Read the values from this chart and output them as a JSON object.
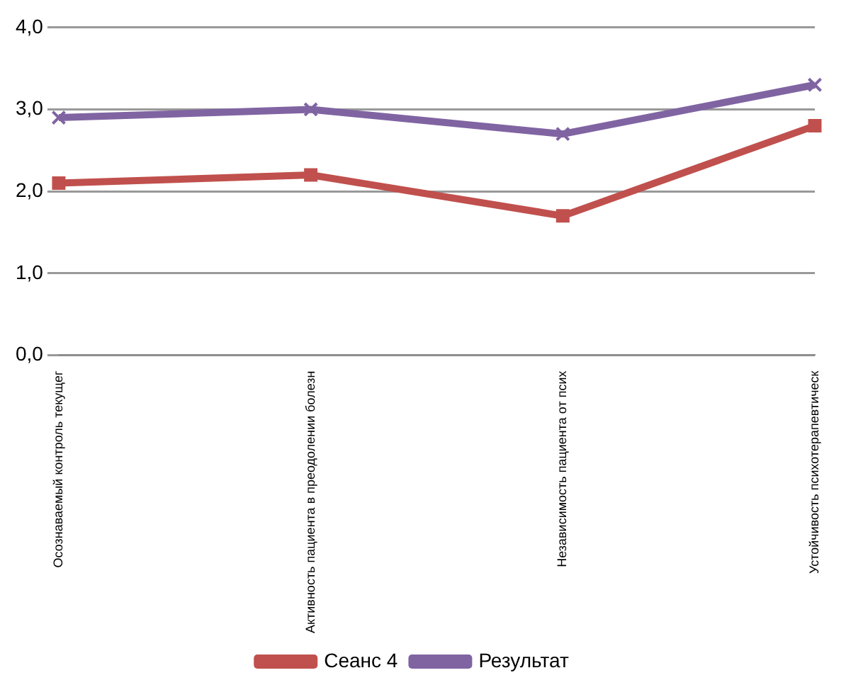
{
  "chart_data": {
    "type": "line",
    "categories": [
      "Осознаваемый контроль текущег",
      "Активность пациента в преодолении болезн",
      "Независимость пациента от псих",
      "Устойчивость психотерапевтическ"
    ],
    "series": [
      {
        "name": "Сеанс 4",
        "color": "#c0504d",
        "marker": "square",
        "values": [
          2.1,
          2.2,
          1.7,
          2.8
        ]
      },
      {
        "name": "Результат",
        "color": "#8064a2",
        "marker": "cross",
        "values": [
          2.9,
          3.0,
          2.7,
          3.3
        ]
      }
    ],
    "ylim": [
      0,
      4
    ],
    "yticks": [
      {
        "value": 0,
        "label": "0,0"
      },
      {
        "value": 1,
        "label": "1,0"
      },
      {
        "value": 2,
        "label": "2,0"
      },
      {
        "value": 3,
        "label": "3,0"
      },
      {
        "value": 4,
        "label": "4,0"
      }
    ],
    "grid": "y",
    "legend": "bottom",
    "line_style": "solid"
  }
}
